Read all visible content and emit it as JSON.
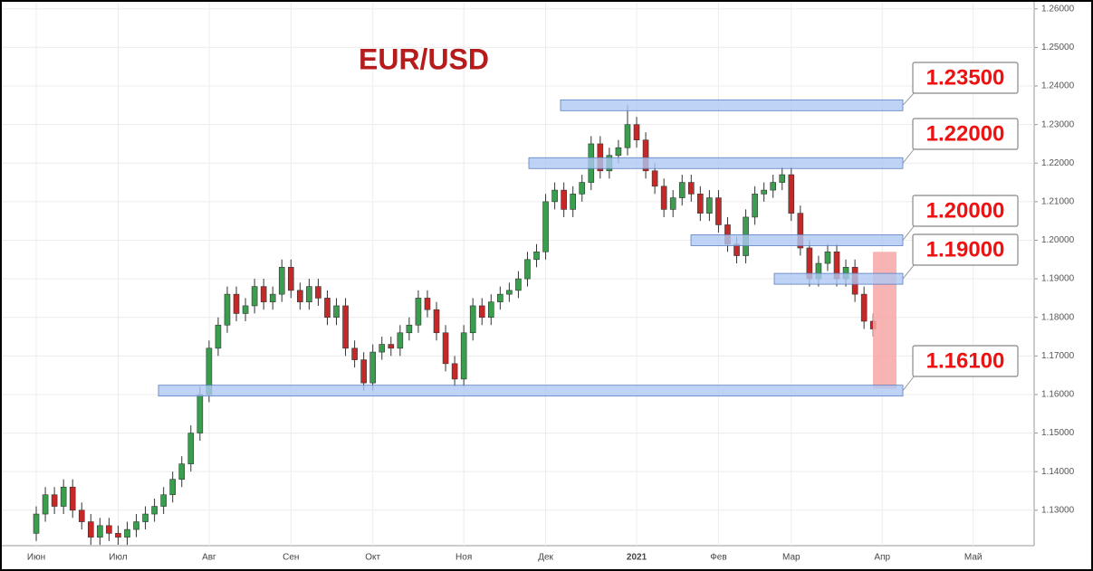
{
  "chart_data": {
    "type": "candlestick",
    "title": "EUR/USD",
    "categories": [
      "Июн",
      null,
      null,
      null,
      null,
      null,
      null,
      null,
      null,
      "Июл",
      null,
      null,
      null,
      null,
      null,
      null,
      null,
      null,
      null,
      "Авг",
      null,
      null,
      null,
      null,
      null,
      null,
      null,
      null,
      "Сен",
      null,
      null,
      null,
      null,
      null,
      null,
      null,
      null,
      "Окт",
      null,
      null,
      null,
      null,
      null,
      null,
      null,
      null,
      null,
      "Ноя",
      null,
      null,
      null,
      null,
      null,
      null,
      null,
      null,
      "Дек",
      null,
      null,
      null,
      null,
      null,
      null,
      null,
      null,
      null,
      "2021",
      null,
      null,
      null,
      null,
      null,
      null,
      null,
      null,
      "Фев",
      null,
      null,
      null,
      null,
      null,
      null,
      null,
      "Мар",
      null,
      null,
      null,
      null,
      null,
      null,
      null,
      null,
      null,
      "Апр",
      null,
      null,
      null,
      null,
      null,
      null,
      null,
      null,
      null,
      "Май",
      null,
      null,
      null,
      null,
      null,
      null
    ],
    "open": [
      1.124,
      1.129,
      1.134,
      1.131,
      1.136,
      1.13,
      1.127,
      1.123,
      1.126,
      1.124,
      1.123,
      1.125,
      1.127,
      1.129,
      1.131,
      1.134,
      1.138,
      1.142,
      1.15,
      1.16,
      1.172,
      1.178,
      1.186,
      1.181,
      1.183,
      1.188,
      1.184,
      1.186,
      1.193,
      1.187,
      1.184,
      1.188,
      1.185,
      1.18,
      1.183,
      1.172,
      1.169,
      1.163,
      1.171,
      1.173,
      1.172,
      1.176,
      1.178,
      1.185,
      1.182,
      1.176,
      1.168,
      1.164,
      1.176,
      1.183,
      1.18,
      1.184,
      1.186,
      1.187,
      1.19,
      1.195,
      1.197,
      1.21,
      1.213,
      1.208,
      1.212,
      1.215,
      1.225,
      1.218,
      1.222,
      1.224,
      1.23,
      1.226,
      1.218,
      1.214,
      1.208,
      1.211,
      1.215,
      1.212,
      1.207,
      1.211,
      1.204,
      1.199,
      1.196,
      1.206,
      1.212,
      1.213,
      1.215,
      1.217,
      1.207,
      1.198,
      1.19,
      1.194,
      1.197,
      1.19,
      1.193,
      1.186,
      1.179,
      null,
      null,
      null,
      null,
      null,
      null,
      null,
      null,
      null,
      null,
      null,
      null,
      null,
      null,
      null,
      null,
      null
    ],
    "high": [
      1.131,
      1.136,
      1.136,
      1.138,
      1.138,
      1.132,
      1.129,
      1.128,
      1.128,
      1.126,
      1.127,
      1.129,
      1.131,
      1.133,
      1.136,
      1.14,
      1.144,
      1.152,
      1.162,
      1.174,
      1.18,
      1.188,
      1.188,
      1.185,
      1.19,
      1.19,
      1.188,
      1.195,
      1.195,
      1.189,
      1.19,
      1.19,
      1.187,
      1.185,
      1.185,
      1.174,
      1.171,
      1.173,
      1.175,
      1.175,
      1.178,
      1.18,
      1.187,
      1.187,
      1.184,
      1.178,
      1.17,
      1.178,
      1.185,
      1.185,
      1.186,
      1.188,
      1.189,
      1.192,
      1.197,
      1.199,
      1.212,
      1.215,
      1.215,
      1.214,
      1.217,
      1.227,
      1.227,
      1.224,
      1.226,
      1.235,
      1.232,
      1.228,
      1.22,
      1.216,
      1.213,
      1.217,
      1.217,
      1.214,
      1.213,
      1.213,
      1.206,
      1.201,
      1.208,
      1.214,
      1.215,
      1.217,
      1.219,
      1.219,
      1.209,
      1.2,
      1.196,
      1.199,
      1.199,
      1.195,
      1.195,
      1.188,
      1.181,
      null,
      null,
      null,
      null,
      null,
      null,
      null,
      null,
      null,
      null,
      null,
      null,
      null,
      null,
      null,
      null,
      null
    ],
    "low": [
      1.122,
      1.127,
      1.129,
      1.129,
      1.128,
      1.125,
      1.121,
      1.121,
      1.122,
      1.121,
      1.121,
      1.123,
      1.125,
      1.127,
      1.129,
      1.132,
      1.136,
      1.14,
      1.148,
      1.158,
      1.17,
      1.176,
      1.179,
      1.179,
      1.181,
      1.182,
      1.182,
      1.184,
      1.185,
      1.182,
      1.182,
      1.183,
      1.178,
      1.178,
      1.17,
      1.167,
      1.161,
      1.161,
      1.169,
      1.17,
      1.17,
      1.174,
      1.176,
      1.18,
      1.174,
      1.166,
      1.162,
      1.162,
      1.174,
      1.178,
      1.178,
      1.182,
      1.184,
      1.185,
      1.188,
      1.193,
      1.195,
      1.208,
      1.206,
      1.206,
      1.21,
      1.213,
      1.216,
      1.216,
      1.22,
      1.222,
      1.224,
      1.216,
      1.212,
      1.206,
      1.206,
      1.209,
      1.21,
      1.205,
      1.205,
      1.202,
      1.197,
      1.194,
      1.194,
      1.204,
      1.21,
      1.211,
      1.213,
      1.205,
      1.196,
      1.188,
      1.188,
      1.192,
      1.188,
      1.188,
      1.184,
      1.177,
      1.175,
      null,
      null,
      null,
      null,
      null,
      null,
      null,
      null,
      null,
      null,
      null,
      null,
      null,
      null,
      null,
      null,
      null
    ],
    "close": [
      1.129,
      1.134,
      1.131,
      1.136,
      1.13,
      1.127,
      1.123,
      1.126,
      1.124,
      1.123,
      1.125,
      1.127,
      1.129,
      1.131,
      1.134,
      1.138,
      1.142,
      1.15,
      1.16,
      1.172,
      1.178,
      1.186,
      1.181,
      1.183,
      1.188,
      1.184,
      1.186,
      1.193,
      1.187,
      1.184,
      1.188,
      1.185,
      1.18,
      1.183,
      1.172,
      1.169,
      1.163,
      1.171,
      1.173,
      1.172,
      1.176,
      1.178,
      1.185,
      1.182,
      1.176,
      1.168,
      1.164,
      1.176,
      1.183,
      1.18,
      1.184,
      1.186,
      1.187,
      1.19,
      1.195,
      1.197,
      1.21,
      1.213,
      1.208,
      1.212,
      1.215,
      1.225,
      1.218,
      1.222,
      1.224,
      1.23,
      1.226,
      1.218,
      1.214,
      1.208,
      1.211,
      1.215,
      1.212,
      1.207,
      1.211,
      1.204,
      1.199,
      1.196,
      1.206,
      1.212,
      1.213,
      1.215,
      1.217,
      1.207,
      1.198,
      1.19,
      1.194,
      1.197,
      1.19,
      1.193,
      1.186,
      1.179,
      1.177,
      null,
      null,
      null,
      null,
      null,
      null,
      null,
      null,
      null,
      null,
      null,
      null,
      null,
      null,
      null,
      null,
      null
    ],
    "up_color": "#3a9e4e",
    "down_color": "#c62828",
    "ylim": [
      1.1208,
      1.2623
    ],
    "yticks": [
      {
        "value": 1.13,
        "label": "1.13000"
      },
      {
        "value": 1.14,
        "label": "1.14000"
      },
      {
        "value": 1.15,
        "label": "1.15000"
      },
      {
        "value": 1.16,
        "label": "1.16000"
      },
      {
        "value": 1.17,
        "label": "1.17000"
      },
      {
        "value": 1.18,
        "label": "1.18000"
      },
      {
        "value": 1.19,
        "label": "1.19000"
      },
      {
        "value": 1.2,
        "label": "1.20000"
      },
      {
        "value": 1.21,
        "label": "1.21000"
      },
      {
        "value": 1.22,
        "label": "1.22000"
      },
      {
        "value": 1.23,
        "label": "1.23000"
      },
      {
        "value": 1.24,
        "label": "1.24000"
      },
      {
        "value": 1.25,
        "label": "1.25000"
      },
      {
        "value": 1.26,
        "label": "1.26000"
      }
    ],
    "grid": true,
    "levels": [
      {
        "value": 1.235,
        "label": "1.23500"
      },
      {
        "value": 1.22,
        "label": "1.22000"
      },
      {
        "value": 1.2,
        "label": "1.20000"
      },
      {
        "value": 1.19,
        "label": "1.19000"
      },
      {
        "value": 1.161,
        "label": "1.16100"
      }
    ],
    "level_color": "#aec8f2",
    "projection": {
      "from": 1.197,
      "to": 1.1615,
      "color": "#f7a6a6"
    }
  }
}
